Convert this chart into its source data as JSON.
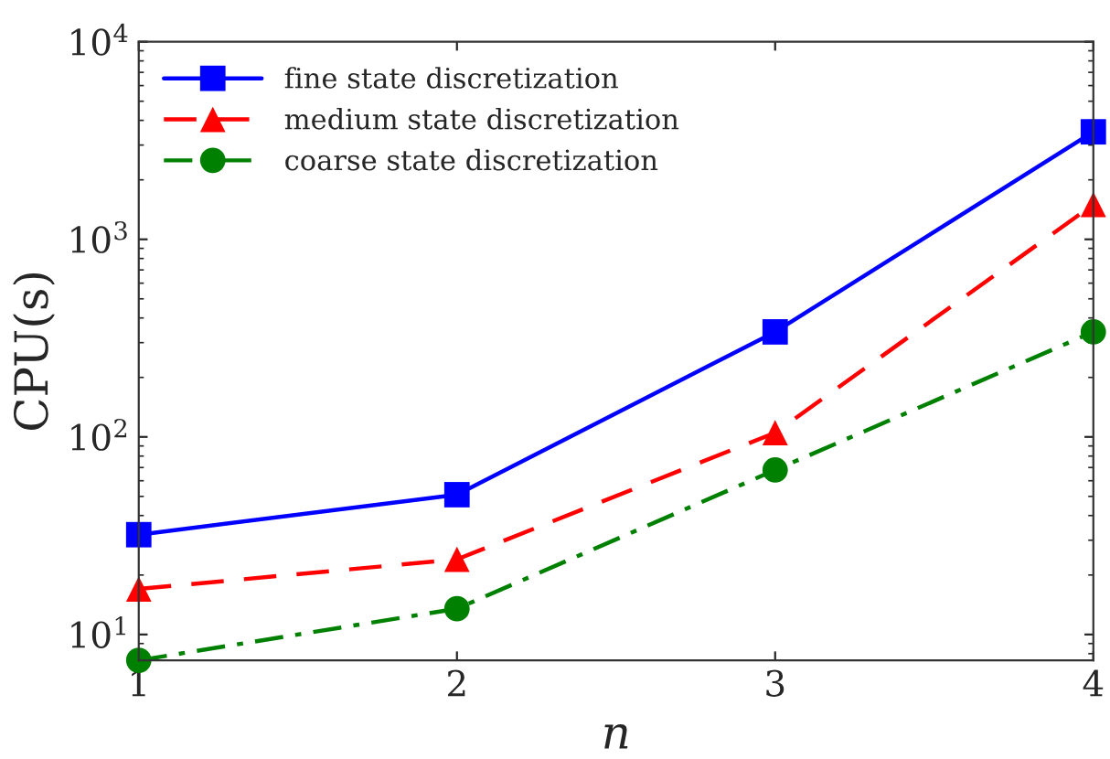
{
  "chart_data": {
    "type": "line",
    "xlabel": "n",
    "ylabel": "CPU(s)",
    "x": [
      1,
      2,
      3,
      4
    ],
    "series": [
      {
        "name": "fine state discretization",
        "color": "#0000ff",
        "marker": "square",
        "line_style": "solid",
        "values": [
          32,
          51,
          340,
          3500
        ]
      },
      {
        "name": "medium state discretization",
        "color": "#ff0000",
        "marker": "triangle",
        "line_style": "dashed",
        "values": [
          17,
          24,
          105,
          1500
        ]
      },
      {
        "name": "coarse state discretization",
        "color": "#008000",
        "marker": "circle",
        "line_style": "dashdot",
        "values": [
          7.4,
          13.5,
          68,
          340
        ]
      }
    ],
    "log": "y",
    "xlim": [
      1,
      4
    ],
    "xticks": [
      1,
      2,
      3,
      4
    ],
    "ylim": [
      7.4,
      10000
    ],
    "yticks": [
      {
        "value": 10,
        "label": "10$^{1}$"
      },
      {
        "value": 100,
        "label": "10$^{2}$"
      },
      {
        "value": 1000,
        "label": "10$^{3}$"
      },
      {
        "value": 10000,
        "label": "10$^{4}$"
      }
    ],
    "grid": false,
    "legend": "top left"
  }
}
